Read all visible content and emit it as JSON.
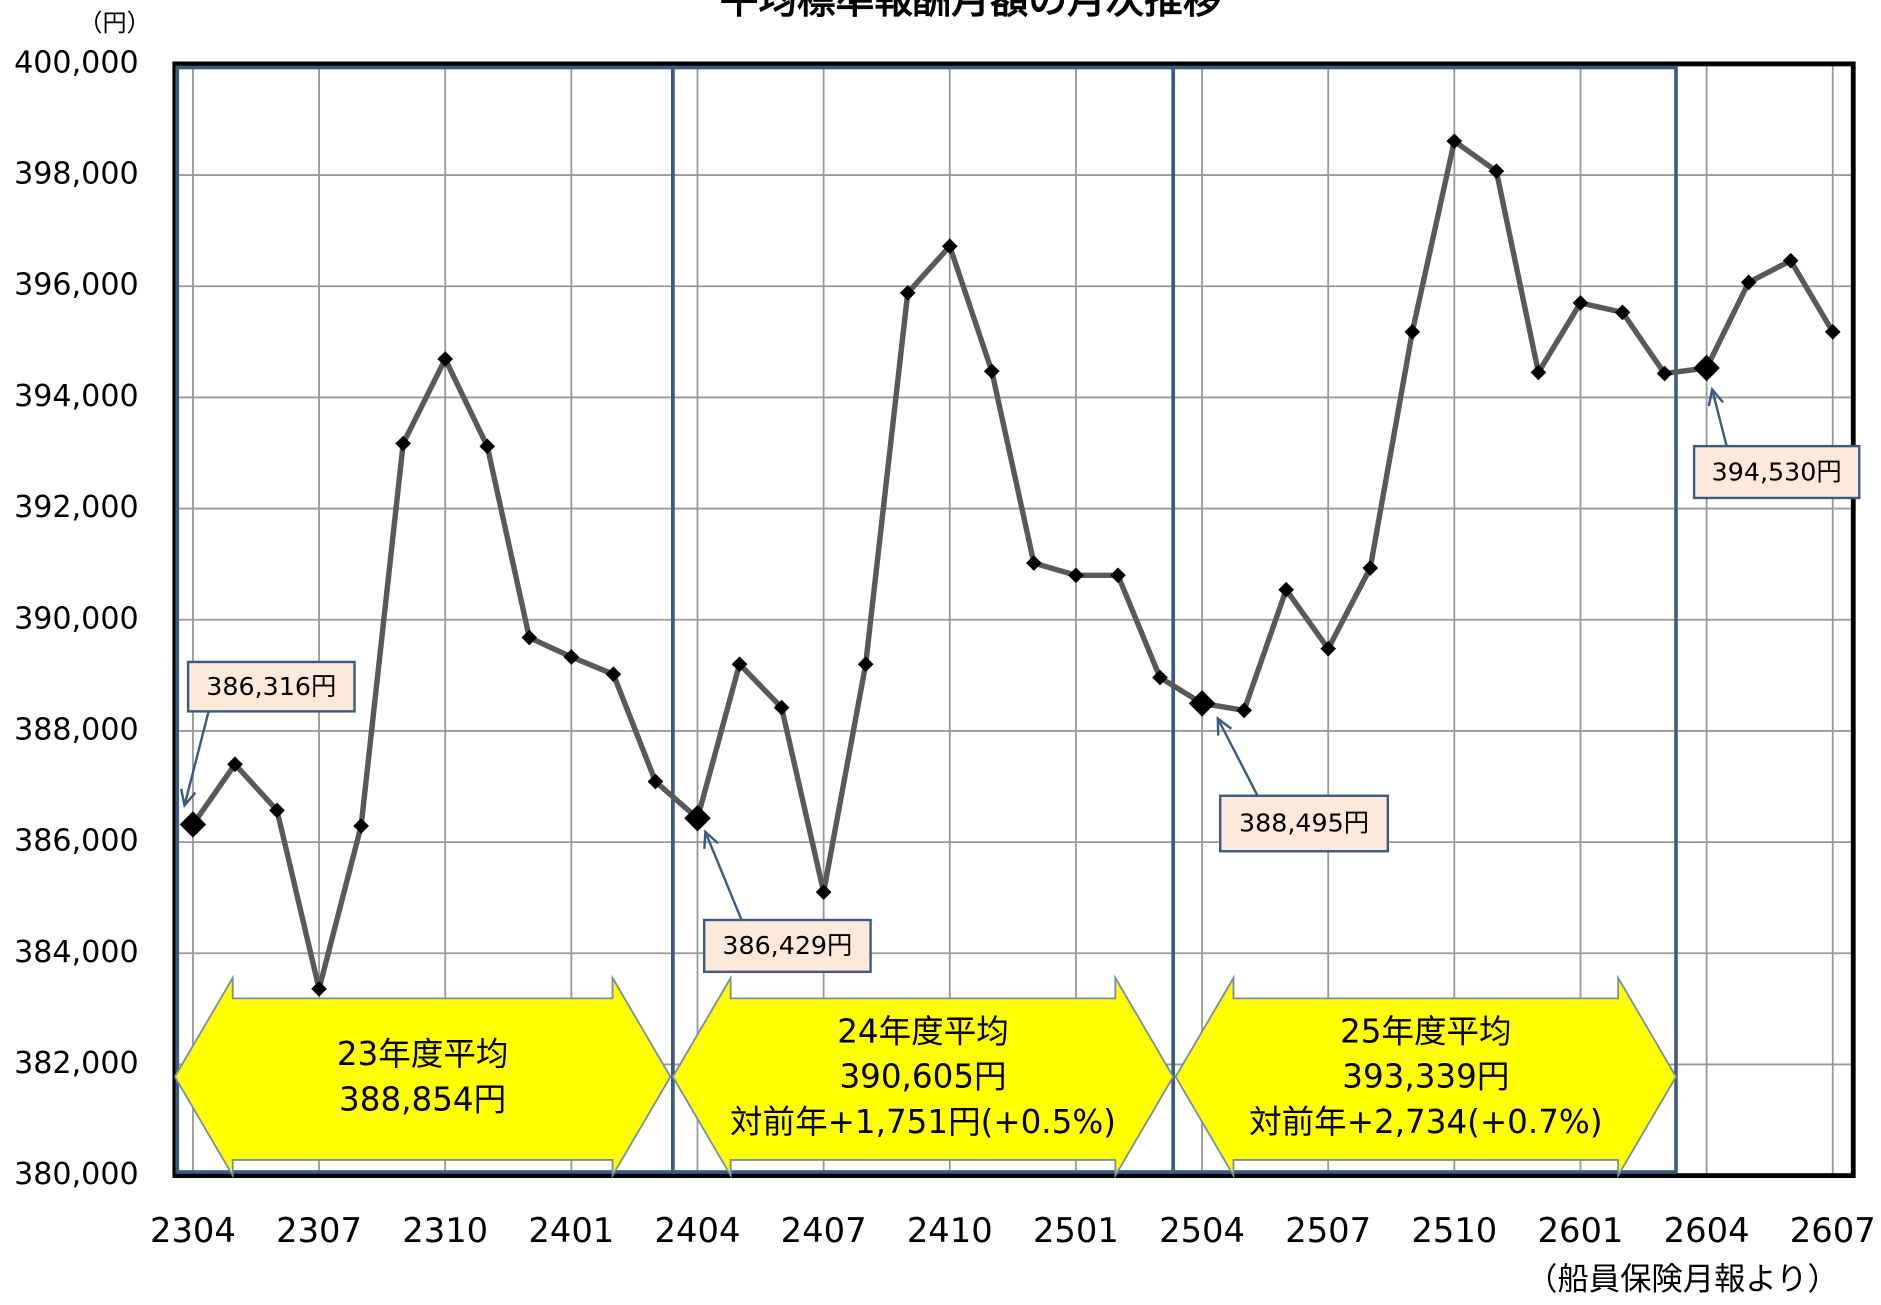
{
  "chart_data": {
    "type": "line",
    "title": "平均標準報酬月額の月次推移",
    "y_unit": "（円）",
    "source": "（船員保険月報より）",
    "categories": [
      "2304",
      null,
      null,
      "2307",
      null,
      null,
      "2310",
      null,
      null,
      "2401",
      null,
      null,
      "2404",
      null,
      null,
      "2407",
      null,
      null,
      "2410",
      null,
      null,
      "2501",
      null,
      null,
      "2504",
      null,
      null,
      "2507",
      null,
      null,
      "2510",
      null,
      null,
      "2601",
      null,
      null,
      "2604",
      null,
      null,
      "2607"
    ],
    "series": [
      {
        "name": "平均標準報酬月額",
        "color": "#595959",
        "values": [
          386316,
          387400,
          386570,
          383360,
          386290,
          393170,
          394690,
          393120,
          389680,
          389330,
          389020,
          387090,
          386429,
          389200,
          388420,
          385100,
          389200,
          395880,
          396720,
          394470,
          391020,
          390800,
          390800,
          388960,
          388495,
          388370,
          390540,
          389480,
          390930,
          395180,
          398610,
          398070,
          394450,
          395700,
          395530,
          394430,
          394530,
          396070,
          396460,
          395180
        ]
      }
    ],
    "annotations": [
      "386,316円",
      "386,429円",
      "388,495円",
      "394,530円"
    ],
    "period_labels": [
      [
        "23年度平均",
        "388,854円"
      ],
      [
        "24年度平均",
        "390,605円",
        "対前年+1,751円(+0.5%)"
      ],
      [
        "25年度平均",
        "393,339円",
        "対前年+2,734(+0.7%)"
      ]
    ],
    "ylim": [
      380000,
      400000
    ],
    "yticks": [
      {
        "value": 380000,
        "label": "380,000"
      },
      {
        "value": 382000,
        "label": "382,000"
      },
      {
        "value": 384000,
        "label": "384,000"
      },
      {
        "value": 386000,
        "label": "386,000"
      },
      {
        "value": 388000,
        "label": "388,000"
      },
      {
        "value": 390000,
        "label": "390,000"
      },
      {
        "value": 392000,
        "label": "392,000"
      },
      {
        "value": 394000,
        "label": "394,000"
      },
      {
        "value": 396000,
        "label": "396,000"
      },
      {
        "value": 398000,
        "label": "398,000"
      },
      {
        "value": 400000,
        "label": "400,000"
      }
    ],
    "grid": true
  }
}
